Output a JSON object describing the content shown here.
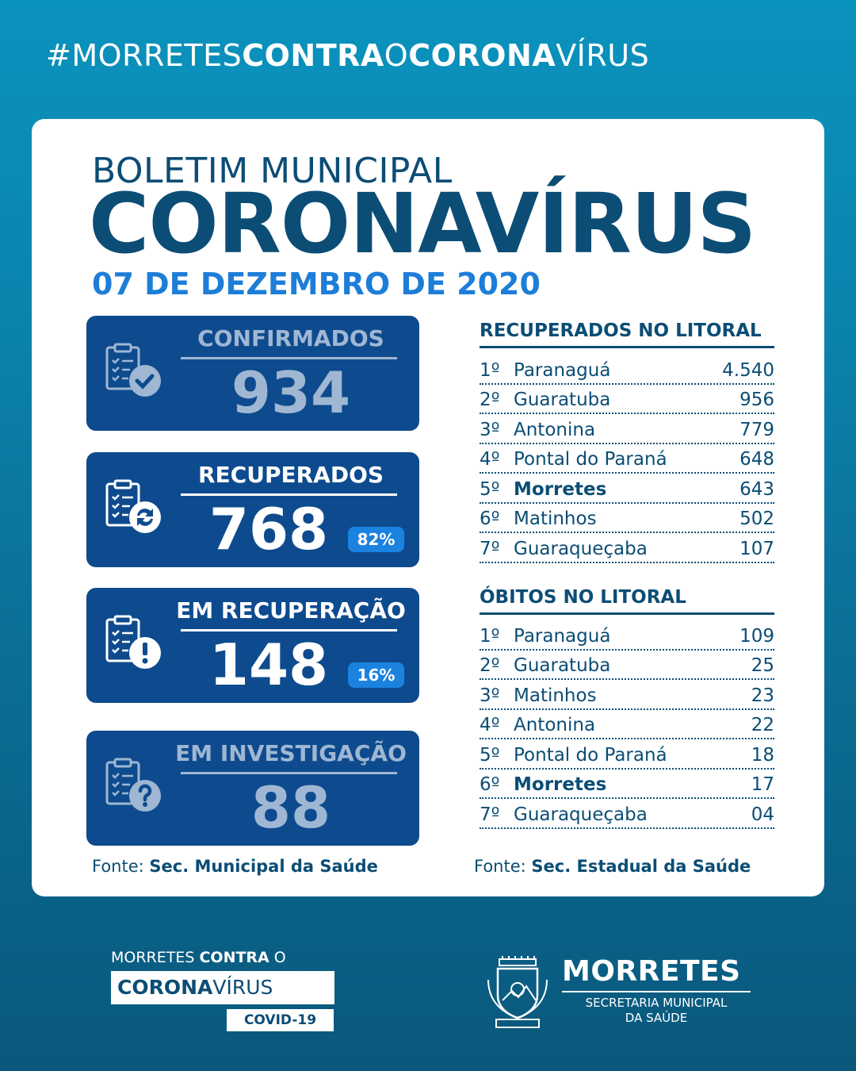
{
  "hashtag": {
    "p1": "#MORRETES",
    "p2": "CONTRA",
    "p3": "O",
    "p4": "CORONA",
    "p5": "VÍRUS"
  },
  "header": {
    "line1": "BOLETIM MUNICIPAL",
    "line2": "CORONAVÍRUS",
    "date": "07 DE DEZEMBRO DE 2020"
  },
  "stats": [
    {
      "label": "CONFIRMADOS",
      "value": "934",
      "percent": null,
      "icon": "clipboard-check-icon"
    },
    {
      "label": "RECUPERADOS",
      "value": "768",
      "percent": "82%",
      "icon": "clipboard-refresh-icon"
    },
    {
      "label": "EM RECUPERAÇÃO",
      "value": "148",
      "percent": "16%",
      "icon": "clipboard-alert-icon"
    },
    {
      "label": "EM INVESTIGAÇÃO",
      "value": "88",
      "percent": null,
      "icon": "clipboard-question-icon"
    }
  ],
  "source_left": {
    "prefix": "Fonte:",
    "name": "Sec. Municipal da Saúde"
  },
  "recovered_ranking": {
    "title": "RECUPERADOS NO LITORAL",
    "rows": [
      {
        "pos": "1º",
        "city": "Paranaguá",
        "value": "4.540"
      },
      {
        "pos": "2º",
        "city": "Guaratuba",
        "value": "956"
      },
      {
        "pos": "3º",
        "city": "Antonina",
        "value": "779"
      },
      {
        "pos": "4º",
        "city": "Pontal do Paraná",
        "value": "648"
      },
      {
        "pos": "5º",
        "city": "Morretes",
        "value": "643",
        "highlight": true
      },
      {
        "pos": "6º",
        "city": "Matinhos",
        "value": "502"
      },
      {
        "pos": "7º",
        "city": "Guaraqueçaba",
        "value": "107"
      }
    ]
  },
  "deaths_ranking": {
    "title": "ÓBITOS NO LITORAL",
    "rows": [
      {
        "pos": "1º",
        "city": "Paranaguá",
        "value": "109"
      },
      {
        "pos": "2º",
        "city": "Guaratuba",
        "value": "25"
      },
      {
        "pos": "3º",
        "city": "Matinhos",
        "value": "23"
      },
      {
        "pos": "4º",
        "city": "Antonina",
        "value": "22"
      },
      {
        "pos": "5º",
        "city": "Pontal do Paraná",
        "value": "18"
      },
      {
        "pos": "6º",
        "city": "Morretes",
        "value": "17",
        "highlight": true
      },
      {
        "pos": "7º",
        "city": "Guaraqueçaba",
        "value": "04"
      }
    ]
  },
  "source_right": {
    "prefix": "Fonte:",
    "name": "Sec. Estadual da Saúde"
  },
  "footer_campaign": {
    "l1a": "MORRETES ",
    "l1b": "CONTRA",
    "l1c": " O",
    "l2a": "CORONA",
    "l2b": "VÍRUS",
    "l3": "COVID-19"
  },
  "footer_brand": {
    "name": "MORRETES",
    "sub1": "SECRETARIA MUNICIPAL",
    "sub2": "DA SAÚDE"
  },
  "colors": {
    "navy": "#0b4d75",
    "card_blue": "#0e4b8e",
    "accent_blue": "#1d7ed8",
    "muted": "#9fb7d3"
  }
}
